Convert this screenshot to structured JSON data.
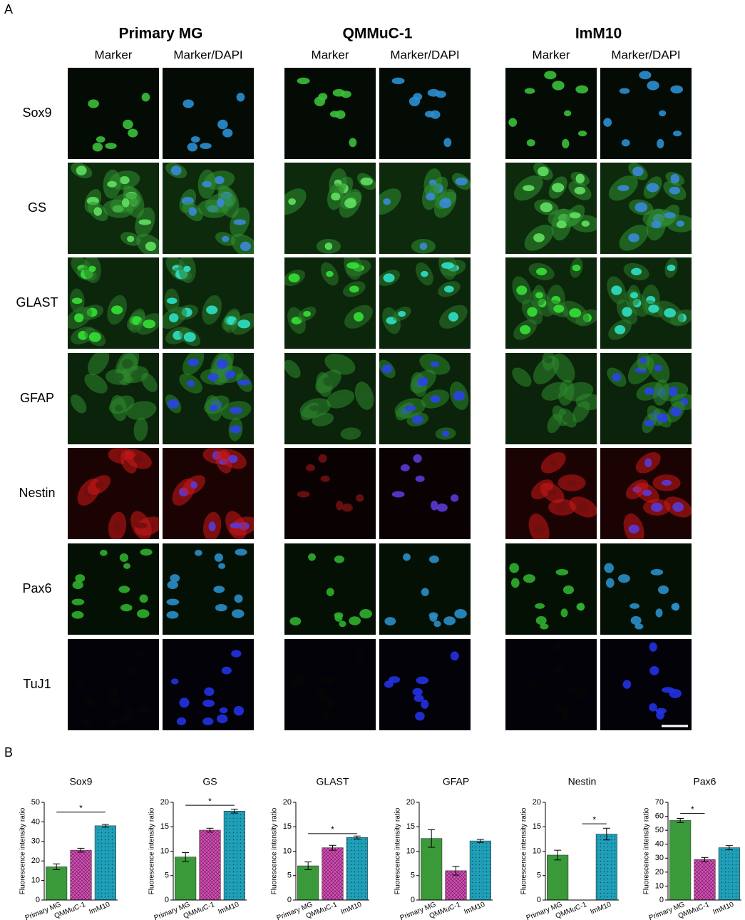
{
  "panel_a": {
    "label": "A",
    "groups": [
      {
        "title": "Primary MG",
        "columns": [
          "Marker",
          "Marker/DAPI"
        ]
      },
      {
        "title": "QMMuC-1",
        "columns": [
          "Marker",
          "Marker/DAPI"
        ]
      },
      {
        "title": "ImM10",
        "columns": [
          "Marker",
          "Marker/DAPI"
        ]
      }
    ],
    "rows": [
      "Sox9",
      "GS",
      "GLAST",
      "GFAP",
      "Nestin",
      "Pax6",
      "TuJ1"
    ]
  },
  "panel_b": {
    "label": "B"
  },
  "chart_data": [
    {
      "type": "bar",
      "title": "Sox9",
      "y_label": "Fluorescence intensity ratio",
      "categories": [
        "Primary MG",
        "QMMuC-1",
        "ImM10"
      ],
      "values": [
        17,
        25.5,
        38
      ],
      "errors": [
        1.5,
        1,
        0.7
      ],
      "colors": [
        "#3a9a3a",
        "#d64fb8",
        "#1f9fb8"
      ],
      "hatches": [
        "solid",
        "cross",
        "dots"
      ],
      "ylim": [
        0,
        50
      ],
      "yticks": [
        0,
        10,
        20,
        30,
        40,
        50
      ],
      "significance": {
        "between": [
          "Primary MG",
          "ImM10"
        ],
        "y": 45,
        "label": "*"
      }
    },
    {
      "type": "bar",
      "title": "GS",
      "y_label": "Fluorescence intensity ratio",
      "categories": [
        "Primary MG",
        "QMMuC-1",
        "ImM10"
      ],
      "values": [
        8.8,
        14.3,
        18.2
      ],
      "errors": [
        0.9,
        0.4,
        0.4
      ],
      "colors": [
        "#3a9a3a",
        "#d64fb8",
        "#1f9fb8"
      ],
      "hatches": [
        "solid",
        "cross",
        "dots"
      ],
      "ylim": [
        0,
        20
      ],
      "yticks": [
        0,
        5,
        10,
        15,
        20
      ],
      "significance": {
        "between": [
          "Primary MG",
          "ImM10"
        ],
        "y": 19.4,
        "label": "*"
      }
    },
    {
      "type": "bar",
      "title": "GLAST",
      "y_label": "Fluorescence intensity ratio",
      "categories": [
        "Primary MG",
        "QMMuC-1",
        "ImM10"
      ],
      "values": [
        7,
        10.7,
        12.8
      ],
      "errors": [
        0.8,
        0.5,
        0.3
      ],
      "colors": [
        "#3a9a3a",
        "#d64fb8",
        "#1f9fb8"
      ],
      "hatches": [
        "solid",
        "cross",
        "dots"
      ],
      "ylim": [
        0,
        20
      ],
      "yticks": [
        0,
        5,
        10,
        15,
        20
      ],
      "significance": {
        "between": [
          "Primary MG",
          "ImM10"
        ],
        "y": 13.6,
        "label": "*"
      }
    },
    {
      "type": "bar",
      "title": "GFAP",
      "y_label": "Fluorescence intensity ratio",
      "categories": [
        "Primary MG",
        "QMMuC-1",
        "ImM10"
      ],
      "values": [
        12.6,
        6,
        12.1
      ],
      "errors": [
        1.8,
        0.9,
        0.3
      ],
      "colors": [
        "#3a9a3a",
        "#d64fb8",
        "#1f9fb8"
      ],
      "hatches": [
        "solid",
        "cross",
        "dots"
      ],
      "ylim": [
        0,
        20
      ],
      "yticks": [
        0,
        5,
        10,
        15,
        20
      ]
    },
    {
      "type": "bar",
      "title": "Nestin",
      "y_label": "Fluorescence intensity ratio",
      "categories": [
        "Primary MG",
        "QMMuC-1",
        "ImM10"
      ],
      "values": [
        9.2,
        0,
        13.5
      ],
      "errors": [
        1,
        0,
        1.2
      ],
      "colors": [
        "#3a9a3a",
        "#d64fb8",
        "#1f9fb8"
      ],
      "hatches": [
        "solid",
        "cross",
        "dots"
      ],
      "ylim": [
        0,
        20
      ],
      "yticks": [
        0,
        5,
        10,
        15,
        20
      ],
      "significance": {
        "between": [
          "QMMuC-1",
          "ImM10"
        ],
        "y": 15.6,
        "label": "*"
      }
    },
    {
      "type": "bar",
      "title": "Pax6",
      "y_label": "Fluorescence intensity ratio",
      "categories": [
        "Primary MG",
        "QMMuC-1",
        "ImM10"
      ],
      "values": [
        57,
        29,
        37.5
      ],
      "errors": [
        1.5,
        1.5,
        1.5
      ],
      "colors": [
        "#3a9a3a",
        "#d64fb8",
        "#1f9fb8"
      ],
      "hatches": [
        "solid",
        "cross",
        "dots"
      ],
      "ylim": [
        0,
        70
      ],
      "yticks": [
        0,
        10,
        20,
        30,
        40,
        50,
        60,
        70
      ],
      "significance": {
        "between": [
          "Primary MG",
          "QMMuC-1"
        ],
        "y": 62,
        "label": "*"
      }
    }
  ]
}
